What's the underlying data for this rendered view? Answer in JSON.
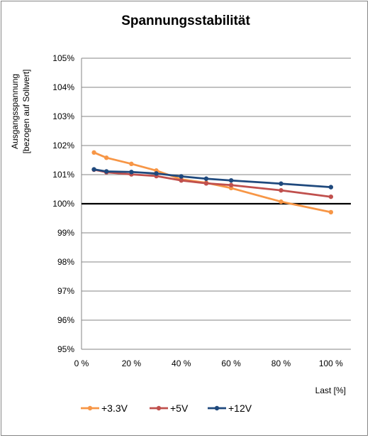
{
  "chart_data": {
    "type": "line",
    "title": "Spannungsstabilität",
    "xlabel": "Last [%]",
    "ylabel_line1": "Ausgangsspannung",
    "ylabel_line2": "[bezogen auf Sollwert]",
    "xlim": [
      0,
      108
    ],
    "ylim": [
      95,
      105
    ],
    "x_ticks": [
      0,
      20,
      40,
      60,
      80,
      100
    ],
    "x_tick_labels": [
      "0 %",
      "20 %",
      "40 %",
      "60 %",
      "80 %",
      "100 %"
    ],
    "y_ticks": [
      95,
      96,
      97,
      98,
      99,
      100,
      101,
      102,
      103,
      104,
      105
    ],
    "y_tick_labels": [
      "95%",
      "96%",
      "97%",
      "98%",
      "99%",
      "100%",
      "101%",
      "102%",
      "103%",
      "104%",
      "105%"
    ],
    "grid": true,
    "legend_position": "bottom",
    "reference_line": {
      "y": 100,
      "x": [
        0,
        108
      ],
      "color": "#000000"
    },
    "series": [
      {
        "name": "+3.3V",
        "color": "#F79646",
        "x": [
          5,
          10,
          20,
          30,
          40,
          50,
          60,
          80,
          100
        ],
        "y": [
          101.76,
          101.58,
          101.37,
          101.14,
          100.84,
          100.72,
          100.54,
          100.07,
          99.71
        ]
      },
      {
        "name": "+5V",
        "color": "#C0504D",
        "x": [
          5,
          10,
          20,
          30,
          40,
          50,
          60,
          80,
          100
        ],
        "y": [
          101.17,
          101.08,
          101.01,
          100.95,
          100.8,
          100.7,
          100.64,
          100.46,
          100.24
        ]
      },
      {
        "name": "+12V",
        "color": "#1F497D",
        "x": [
          5,
          10,
          20,
          30,
          40,
          50,
          60,
          80,
          100
        ],
        "y": [
          101.18,
          101.11,
          101.09,
          101.04,
          100.94,
          100.86,
          100.8,
          100.69,
          100.57
        ]
      }
    ]
  }
}
